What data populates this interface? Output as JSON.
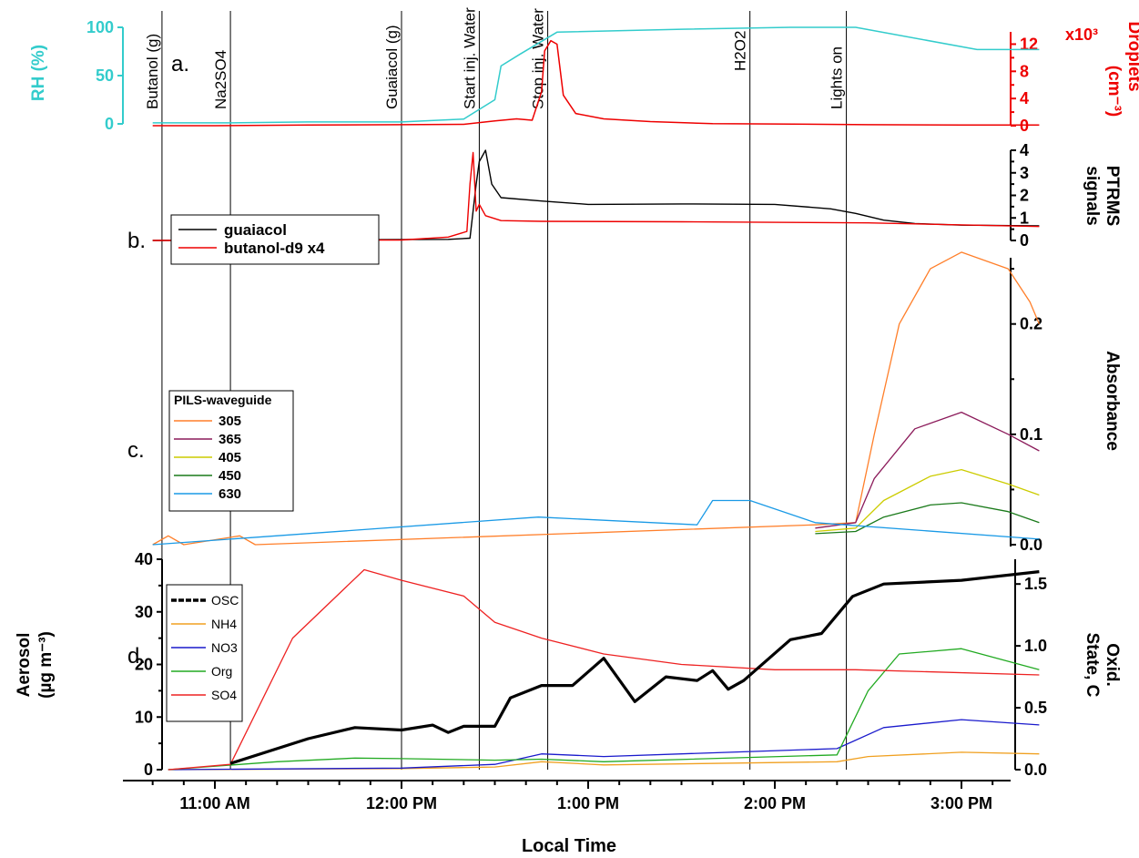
{
  "figure": {
    "xlabel": "Local Time",
    "x_ticks": [
      "11:00 AM",
      "12:00 PM",
      "1:00 PM",
      "2:00 PM",
      "3:00 PM"
    ]
  },
  "events": [
    {
      "label": "Butanol (g)",
      "time": "10:43"
    },
    {
      "label": "Na2SO4",
      "time": "11:05"
    },
    {
      "label": "Guaiacol (g)",
      "time": "12:00"
    },
    {
      "label": "Start inj. Water",
      "time": "12:25"
    },
    {
      "label": "Stop inj. Water",
      "time": "12:47"
    },
    {
      "label": "H2O2",
      "time": "13:52"
    },
    {
      "label": "Lights on",
      "time": "14:23"
    }
  ],
  "panels": {
    "a": {
      "tag": "a.",
      "ylabel_left": "RH (%)",
      "ylabel_right_1": "Droplets",
      "ylabel_right_2": "(cm⁻³)",
      "right_multiplier": "x10³"
    },
    "b": {
      "tag": "b.",
      "ylabel_right_1": "PTRMS",
      "ylabel_right_2": "signals"
    },
    "c": {
      "tag": "c.",
      "ylabel_right": "Absorbance",
      "legend_title": "PILS-waveguide"
    },
    "d": {
      "tag": "d.",
      "ylabel_left_1": "Aerosol",
      "ylabel_left_2": "(µg m⁻³)",
      "ylabel_right_1": "Oxid.",
      "ylabel_right_2": "State, C"
    }
  },
  "colors": {
    "rh": "#33cccc",
    "droplets": "#ee0000",
    "guaiacol": "#000000",
    "butanol": "#ee0000",
    "w305": "#ff7f2a",
    "w365": "#8b1a5a",
    "w405": "#cccc00",
    "w450": "#1a7a1a",
    "w630": "#1a9ae6",
    "os": "#000000",
    "nh4": "#f0a020",
    "no3": "#1a1acc",
    "org": "#22aa22",
    "so4": "#ee2222"
  },
  "chart_data": [
    {
      "panel": "a",
      "type": "line",
      "ylabel": "RH (%)",
      "y2label": "Droplets (cm⁻³) x10³",
      "ylim": [
        0,
        100
      ],
      "y2lim": [
        0,
        13000
      ],
      "y_ticks": [
        0,
        50,
        100
      ],
      "y2_ticks": [
        0,
        4,
        8,
        12
      ],
      "series": [
        {
          "name": "RH",
          "axis": "left",
          "color": "rh",
          "points": [
            [
              "10:40",
              1
            ],
            [
              "11:05",
              1
            ],
            [
              "11:30",
              2
            ],
            [
              "12:00",
              2
            ],
            [
              "12:20",
              5
            ],
            [
              "12:30",
              25
            ],
            [
              "12:32",
              60
            ],
            [
              "12:38",
              72
            ],
            [
              "12:50",
              95
            ],
            [
              "13:30",
              98
            ],
            [
              "14:05",
              100
            ],
            [
              "14:26",
              100
            ],
            [
              "15:05",
              77
            ],
            [
              "15:25",
              77
            ]
          ]
        },
        {
          "name": "Droplets",
          "axis": "right",
          "color": "droplets",
          "points": [
            [
              "10:40",
              0
            ],
            [
              "11:00",
              0
            ],
            [
              "11:30",
              100
            ],
            [
              "12:00",
              150
            ],
            [
              "12:20",
              200
            ],
            [
              "12:30",
              700
            ],
            [
              "12:37",
              1000
            ],
            [
              "12:42",
              800
            ],
            [
              "12:45",
              5000
            ],
            [
              "12:46",
              11000
            ],
            [
              "12:48",
              12500
            ],
            [
              "12:50",
              12000
            ],
            [
              "12:52",
              4500
            ],
            [
              "12:56",
              1800
            ],
            [
              "13:05",
              1000
            ],
            [
              "13:20",
              600
            ],
            [
              "13:40",
              300
            ],
            [
              "14:00",
              250
            ],
            [
              "14:30",
              150
            ],
            [
              "15:00",
              100
            ],
            [
              "15:25",
              100
            ]
          ]
        }
      ]
    },
    {
      "panel": "b",
      "type": "line",
      "ylabel": "PTRMS signals",
      "ylim": [
        0,
        4
      ],
      "y_ticks": [
        0,
        1,
        2,
        3,
        4
      ],
      "series": [
        {
          "name": "guaiacol",
          "color": "guaiacol",
          "points": [
            [
              "10:40",
              0
            ],
            [
              "12:15",
              0.05
            ],
            [
              "12:22",
              0.1
            ],
            [
              "12:24",
              2.5
            ],
            [
              "12:25",
              3.5
            ],
            [
              "12:27",
              4.0
            ],
            [
              "12:29",
              2.5
            ],
            [
              "12:32",
              1.9
            ],
            [
              "12:45",
              1.75
            ],
            [
              "13:00",
              1.6
            ],
            [
              "13:30",
              1.62
            ],
            [
              "14:00",
              1.6
            ],
            [
              "14:18",
              1.4
            ],
            [
              "14:26",
              1.2
            ],
            [
              "14:35",
              0.9
            ],
            [
              "14:45",
              0.75
            ],
            [
              "15:00",
              0.68
            ],
            [
              "15:25",
              0.65
            ]
          ]
        },
        {
          "name": "butanol-d9 x4",
          "color": "butanol",
          "points": [
            [
              "10:40",
              0
            ],
            [
              "12:00",
              0.02
            ],
            [
              "12:15",
              0.15
            ],
            [
              "12:21",
              0.4
            ],
            [
              "12:22",
              2.5
            ],
            [
              "12:23",
              3.9
            ],
            [
              "12:24",
              1.3
            ],
            [
              "12:25",
              1.6
            ],
            [
              "12:27",
              1.1
            ],
            [
              "12:32",
              0.88
            ],
            [
              "12:45",
              0.85
            ],
            [
              "13:30",
              0.83
            ],
            [
              "14:30",
              0.78
            ],
            [
              "15:25",
              0.62
            ]
          ]
        }
      ]
    },
    {
      "panel": "c",
      "type": "line",
      "ylabel": "Absorbance",
      "ylim": [
        0,
        0.26
      ],
      "y_ticks": [
        0.0,
        0.1,
        0.2
      ],
      "series": [
        {
          "name": "305",
          "color": "w305",
          "points": [
            [
              "10:40",
              0
            ],
            [
              "10:45",
              0.008
            ],
            [
              "10:50",
              0
            ],
            [
              "11:08",
              0.008
            ],
            [
              "11:13",
              0
            ],
            [
              "14:13",
              0.018
            ],
            [
              "14:26",
              0.02
            ],
            [
              "14:32",
              0.1
            ],
            [
              "14:40",
              0.2
            ],
            [
              "14:50",
              0.25
            ],
            [
              "15:00",
              0.265
            ],
            [
              "15:15",
              0.25
            ],
            [
              "15:22",
              0.22
            ],
            [
              "15:25",
              0.2
            ]
          ]
        },
        {
          "name": "365",
          "color": "w365",
          "points": [
            [
              "14:13",
              0.015
            ],
            [
              "14:26",
              0.02
            ],
            [
              "14:32",
              0.06
            ],
            [
              "14:45",
              0.105
            ],
            [
              "15:00",
              0.12
            ],
            [
              "15:15",
              0.1
            ],
            [
              "15:25",
              0.085
            ]
          ]
        },
        {
          "name": "405",
          "color": "w405",
          "points": [
            [
              "14:13",
              0.012
            ],
            [
              "14:26",
              0.015
            ],
            [
              "14:35",
              0.04
            ],
            [
              "14:50",
              0.062
            ],
            [
              "15:00",
              0.068
            ],
            [
              "15:15",
              0.055
            ],
            [
              "15:25",
              0.045
            ]
          ]
        },
        {
          "name": "450",
          "color": "w450",
          "points": [
            [
              "14:13",
              0.01
            ],
            [
              "14:26",
              0.012
            ],
            [
              "14:35",
              0.025
            ],
            [
              "14:50",
              0.036
            ],
            [
              "15:00",
              0.038
            ],
            [
              "15:15",
              0.03
            ],
            [
              "15:25",
              0.02
            ]
          ]
        },
        {
          "name": "630",
          "color": "w630",
          "points": [
            [
              "10:40",
              0
            ],
            [
              "12:44",
              0.025
            ],
            [
              "13:35",
              0.018
            ],
            [
              "13:40",
              0.04
            ],
            [
              "13:52",
              0.04
            ],
            [
              "14:13",
              0.02
            ],
            [
              "15:25",
              0.005
            ]
          ]
        }
      ]
    },
    {
      "panel": "d",
      "type": "line",
      "ylabel": "Aerosol (µg m⁻³)",
      "y2label": "Oxid. State, C",
      "ylim": [
        0,
        40
      ],
      "y2lim": [
        0,
        1.7
      ],
      "y_ticks": [
        0,
        10,
        20,
        30,
        40
      ],
      "y2_ticks": [
        0.0,
        0.5,
        1.0,
        1.5
      ],
      "series": [
        {
          "name": "OSC",
          "axis": "right",
          "color": "os",
          "points": [
            [
              "11:05",
              0.05
            ],
            [
              "11:30",
              0.25
            ],
            [
              "11:45",
              0.34
            ],
            [
              "12:00",
              0.32
            ],
            [
              "12:10",
              0.36
            ],
            [
              "12:15",
              0.3
            ],
            [
              "12:20",
              0.35
            ],
            [
              "12:30",
              0.35
            ],
            [
              "12:35",
              0.58
            ],
            [
              "12:45",
              0.68
            ],
            [
              "12:55",
              0.68
            ],
            [
              "13:05",
              0.9
            ],
            [
              "13:15",
              0.55
            ],
            [
              "13:25",
              0.75
            ],
            [
              "13:35",
              0.72
            ],
            [
              "13:40",
              0.8
            ],
            [
              "13:45",
              0.65
            ],
            [
              "13:50",
              0.72
            ],
            [
              "14:05",
              1.05
            ],
            [
              "14:15",
              1.1
            ],
            [
              "14:25",
              1.4
            ],
            [
              "14:35",
              1.5
            ],
            [
              "15:00",
              1.53
            ],
            [
              "15:25",
              1.6
            ]
          ]
        },
        {
          "name": "NH4",
          "axis": "left",
          "color": "nh4",
          "points": [
            [
              "10:45",
              0
            ],
            [
              "12:00",
              0.2
            ],
            [
              "12:30",
              0.5
            ],
            [
              "12:45",
              1.5
            ],
            [
              "13:05",
              0.9
            ],
            [
              "14:20",
              1.5
            ],
            [
              "14:30",
              2.5
            ],
            [
              "15:00",
              3.3
            ],
            [
              "15:25",
              3
            ]
          ]
        },
        {
          "name": "NO3",
          "axis": "left",
          "color": "no3",
          "points": [
            [
              "10:45",
              0
            ],
            [
              "12:00",
              0.3
            ],
            [
              "12:30",
              1
            ],
            [
              "12:45",
              3
            ],
            [
              "13:05",
              2.5
            ],
            [
              "14:20",
              4
            ],
            [
              "14:35",
              8
            ],
            [
              "15:00",
              9.5
            ],
            [
              "15:25",
              8.5
            ]
          ]
        },
        {
          "name": "Org",
          "axis": "left",
          "color": "org",
          "points": [
            [
              "10:45",
              0
            ],
            [
              "11:20",
              1.5
            ],
            [
              "11:45",
              2.2
            ],
            [
              "12:00",
              2.1
            ],
            [
              "12:30",
              1.8
            ],
            [
              "12:45",
              2
            ],
            [
              "13:05",
              1.5
            ],
            [
              "14:20",
              2.8
            ],
            [
              "14:30",
              15
            ],
            [
              "14:40",
              22
            ],
            [
              "15:00",
              23
            ],
            [
              "15:25",
              19
            ]
          ]
        },
        {
          "name": "SO4",
          "axis": "left",
          "color": "so4",
          "points": [
            [
              "10:45",
              0
            ],
            [
              "11:05",
              1
            ],
            [
              "11:25",
              25
            ],
            [
              "11:48",
              38
            ],
            [
              "12:00",
              36
            ],
            [
              "12:20",
              33
            ],
            [
              "12:30",
              28
            ],
            [
              "12:45",
              25
            ],
            [
              "13:05",
              22
            ],
            [
              "13:30",
              20
            ],
            [
              "14:00",
              19
            ],
            [
              "14:26",
              19
            ],
            [
              "15:25",
              18
            ]
          ]
        }
      ]
    }
  ]
}
